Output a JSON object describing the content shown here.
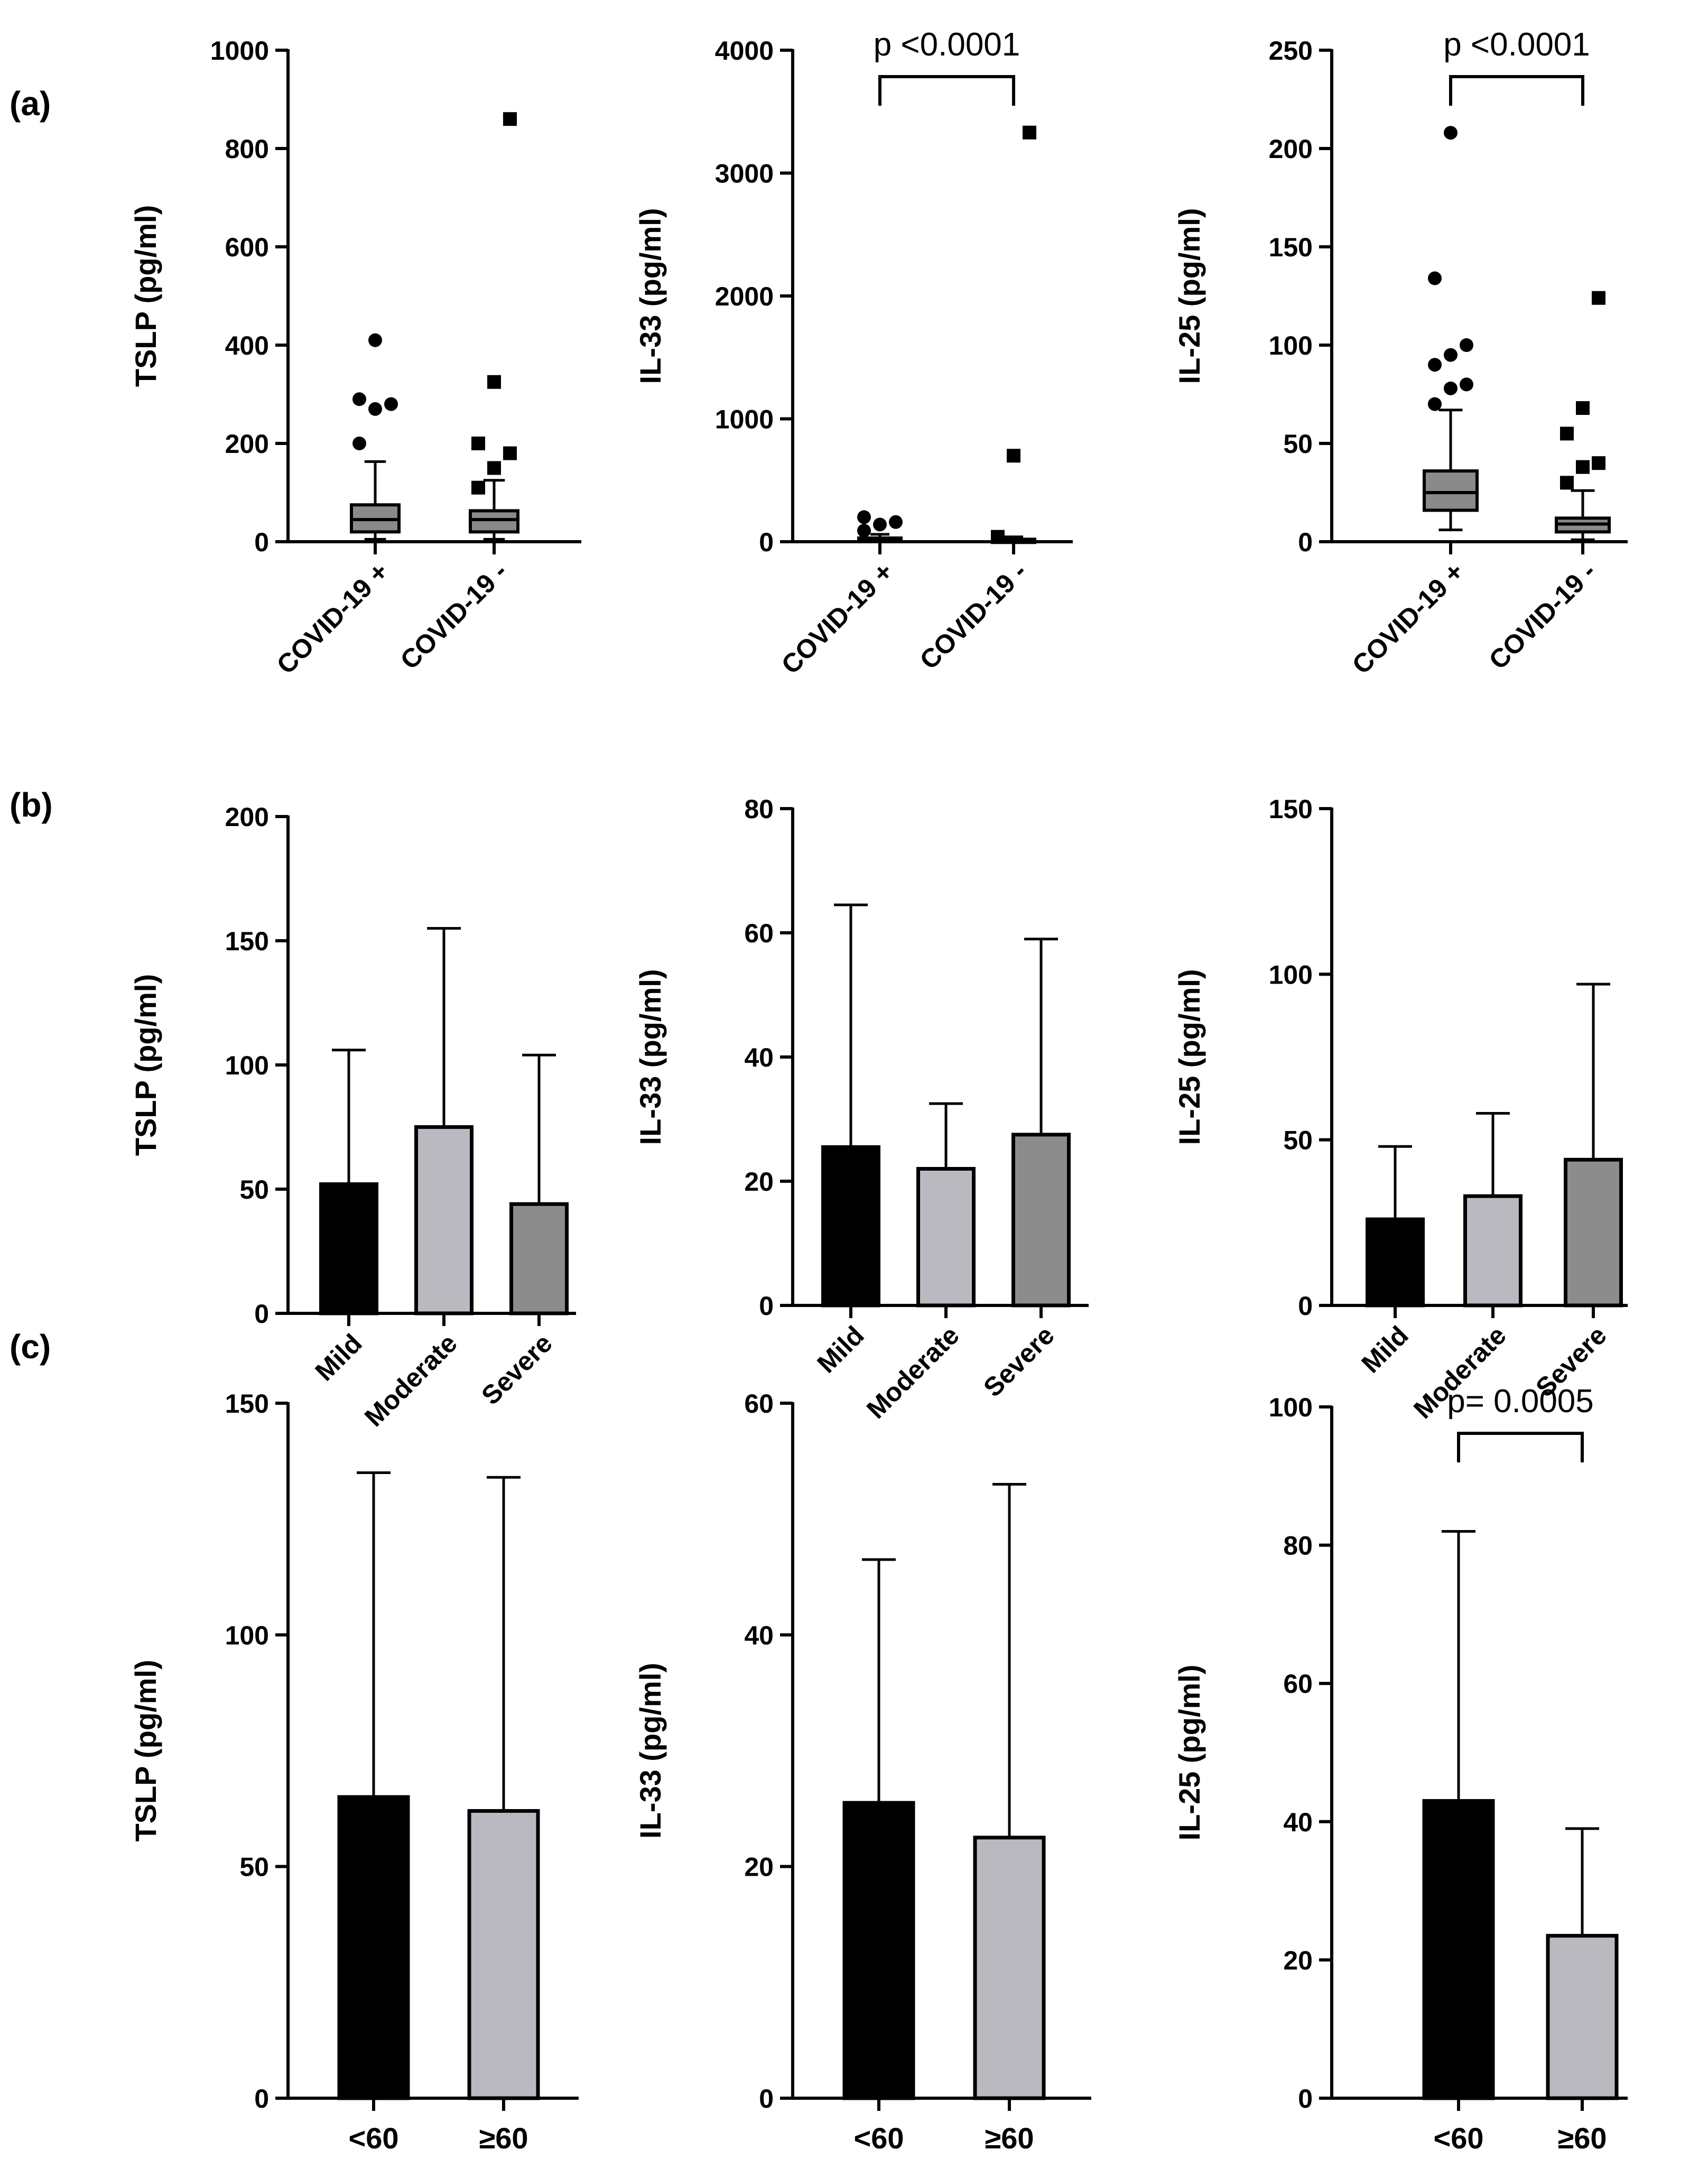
{
  "panels": [
    {
      "letter": "(a)"
    },
    {
      "letter": "(b)"
    },
    {
      "letter": "(c)"
    }
  ],
  "colors": {
    "black": "#000000",
    "light_gray": "#b9b9bf",
    "mid_gray": "#8c8c8c",
    "box_fill": "#8a8a8a"
  },
  "chart_data": [
    {
      "id": "a1",
      "panel": "(a)",
      "type": "box",
      "ylabel": "TSLP (pg/ml)",
      "ylim": [
        0,
        1000
      ],
      "yticks": [
        0,
        200,
        400,
        600,
        800,
        1000
      ],
      "categories": [
        "COVID-19 +",
        "COVID-19 -"
      ],
      "boxes": [
        {
          "q1": 20,
          "median": 45,
          "q3": 75,
          "whisker_low": 5,
          "whisker_high": 163,
          "outliers": [
            200,
            270,
            280,
            290,
            410
          ],
          "marker": "circle"
        },
        {
          "q1": 20,
          "median": 45,
          "q3": 63,
          "whisker_low": 5,
          "whisker_high": 125,
          "outliers": [
            110,
            150,
            180,
            200,
            325,
            860
          ],
          "marker": "square"
        }
      ]
    },
    {
      "id": "a2",
      "panel": "(a)",
      "type": "box",
      "ylabel": "IL-33 (pg/ml)",
      "ylim": [
        0,
        4000
      ],
      "yticks": [
        0,
        1000,
        2000,
        3000,
        4000
      ],
      "categories": [
        "COVID-19 +",
        "COVID-19 -"
      ],
      "boxes": [
        {
          "q1": 5,
          "median": 15,
          "q3": 30,
          "whisker_low": 0,
          "whisker_high": 60,
          "outliers": [
            90,
            140,
            160,
            200
          ],
          "marker": "circle"
        },
        {
          "q1": 5,
          "median": 10,
          "q3": 20,
          "whisker_low": 0,
          "whisker_high": 40,
          "outliers": [
            40,
            700,
            3330
          ],
          "marker": "square"
        }
      ],
      "significance": {
        "text": "p <0.0001",
        "from": 0,
        "to": 1
      }
    },
    {
      "id": "a3",
      "panel": "(a)",
      "type": "box",
      "ylabel": "IL-25 (pg/ml)",
      "ylim": [
        0,
        250
      ],
      "yticks": [
        0,
        50,
        100,
        150,
        200,
        250
      ],
      "categories": [
        "COVID-19 +",
        "COVID-19 -"
      ],
      "boxes": [
        {
          "q1": 16,
          "median": 25,
          "q3": 36,
          "whisker_low": 6,
          "whisker_high": 67,
          "outliers": [
            70,
            78,
            80,
            90,
            95,
            100,
            134,
            208
          ],
          "marker": "circle"
        },
        {
          "q1": 5,
          "median": 9,
          "q3": 12,
          "whisker_low": 1,
          "whisker_high": 26,
          "outliers": [
            30,
            38,
            40,
            55,
            68,
            124
          ],
          "marker": "square"
        }
      ],
      "significance": {
        "text": "p <0.0001",
        "from": 0,
        "to": 1
      }
    },
    {
      "id": "b1",
      "panel": "(b)",
      "type": "bar",
      "ylabel": "TSLP (pg/ml)",
      "ylim": [
        0,
        200
      ],
      "yticks": [
        0,
        50,
        100,
        150,
        200
      ],
      "categories": [
        "Mild",
        "Moderate",
        "Severe"
      ],
      "values": [
        52,
        75,
        44
      ],
      "errors": [
        106,
        155,
        104
      ]
    },
    {
      "id": "b2",
      "panel": "(b)",
      "type": "bar",
      "ylabel": "IL-33 (pg/ml)",
      "ylim": [
        0,
        80
      ],
      "yticks": [
        0,
        20,
        40,
        60,
        80
      ],
      "categories": [
        "Mild",
        "Moderate",
        "Severe"
      ],
      "values": [
        25.5,
        22,
        27.5
      ],
      "errors": [
        64.5,
        32.5,
        59
      ]
    },
    {
      "id": "b3",
      "panel": "(b)",
      "type": "bar",
      "ylabel": "IL-25 (pg/ml)",
      "ylim": [
        0,
        150
      ],
      "yticks": [
        0,
        50,
        100,
        150
      ],
      "categories": [
        "Mild",
        "Moderate",
        "Severe"
      ],
      "values": [
        26,
        33,
        44
      ],
      "errors": [
        48,
        58,
        97
      ]
    },
    {
      "id": "c1",
      "panel": "(c)",
      "type": "bar",
      "ylabel": "TSLP (pg/ml)",
      "ylim": [
        0,
        150
      ],
      "yticks": [
        0,
        50,
        100,
        150
      ],
      "categories": [
        "<60",
        "≥60"
      ],
      "values": [
        65,
        62
      ],
      "errors": [
        135,
        134
      ]
    },
    {
      "id": "c2",
      "panel": "(c)",
      "type": "bar",
      "ylabel": "IL-33 (pg/ml)",
      "ylim": [
        0,
        60
      ],
      "yticks": [
        0,
        20,
        40,
        60
      ],
      "categories": [
        "<60",
        "≥60"
      ],
      "values": [
        25.5,
        22.5
      ],
      "errors": [
        46.5,
        53
      ]
    },
    {
      "id": "c3",
      "panel": "(c)",
      "type": "bar",
      "ylabel": "IL-25 (pg/ml)",
      "ylim": [
        0,
        100
      ],
      "yticks": [
        0,
        20,
        40,
        60,
        80,
        100
      ],
      "categories": [
        "<60",
        "≥60"
      ],
      "values": [
        43,
        23.5
      ],
      "errors": [
        82,
        39
      ],
      "significance": {
        "text": "p= 0.0005",
        "from": 0,
        "to": 1
      }
    }
  ]
}
